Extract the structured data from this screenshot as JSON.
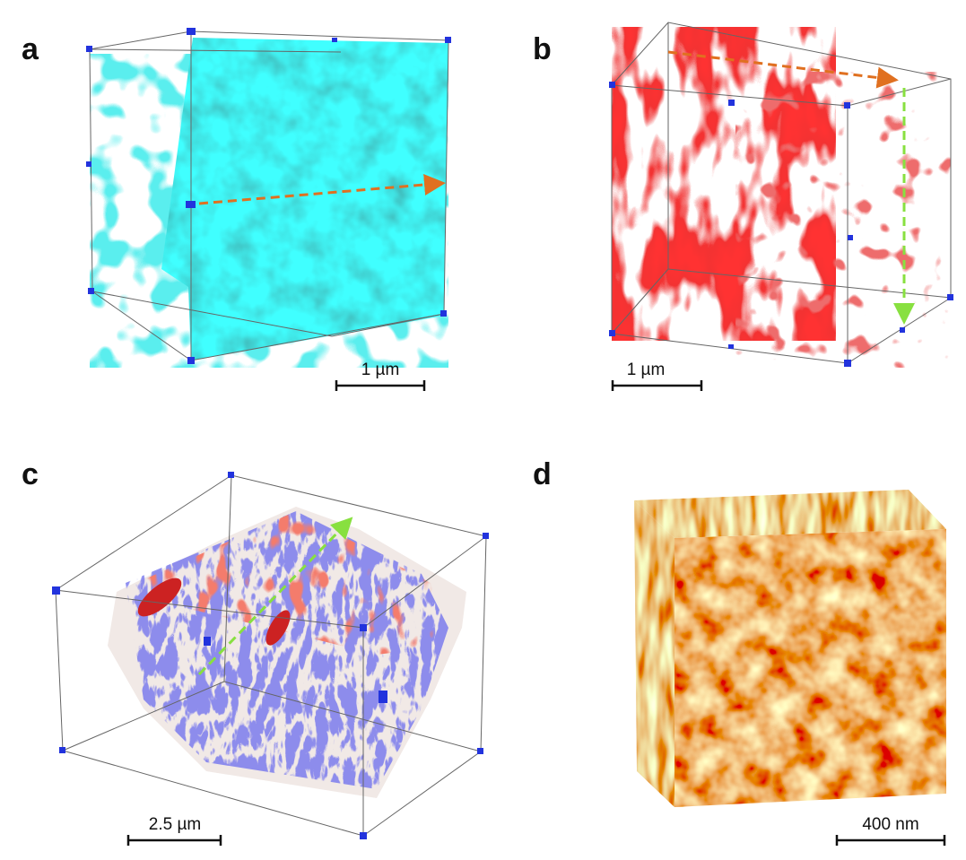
{
  "panels": [
    {
      "label": "a",
      "scale_bar": "1 µm"
    },
    {
      "label": "b",
      "scale_bar": "1 µm"
    },
    {
      "label": "c",
      "scale_bar": "2.5 µm"
    },
    {
      "label": "d",
      "scale_bar": "400 nm"
    }
  ]
}
